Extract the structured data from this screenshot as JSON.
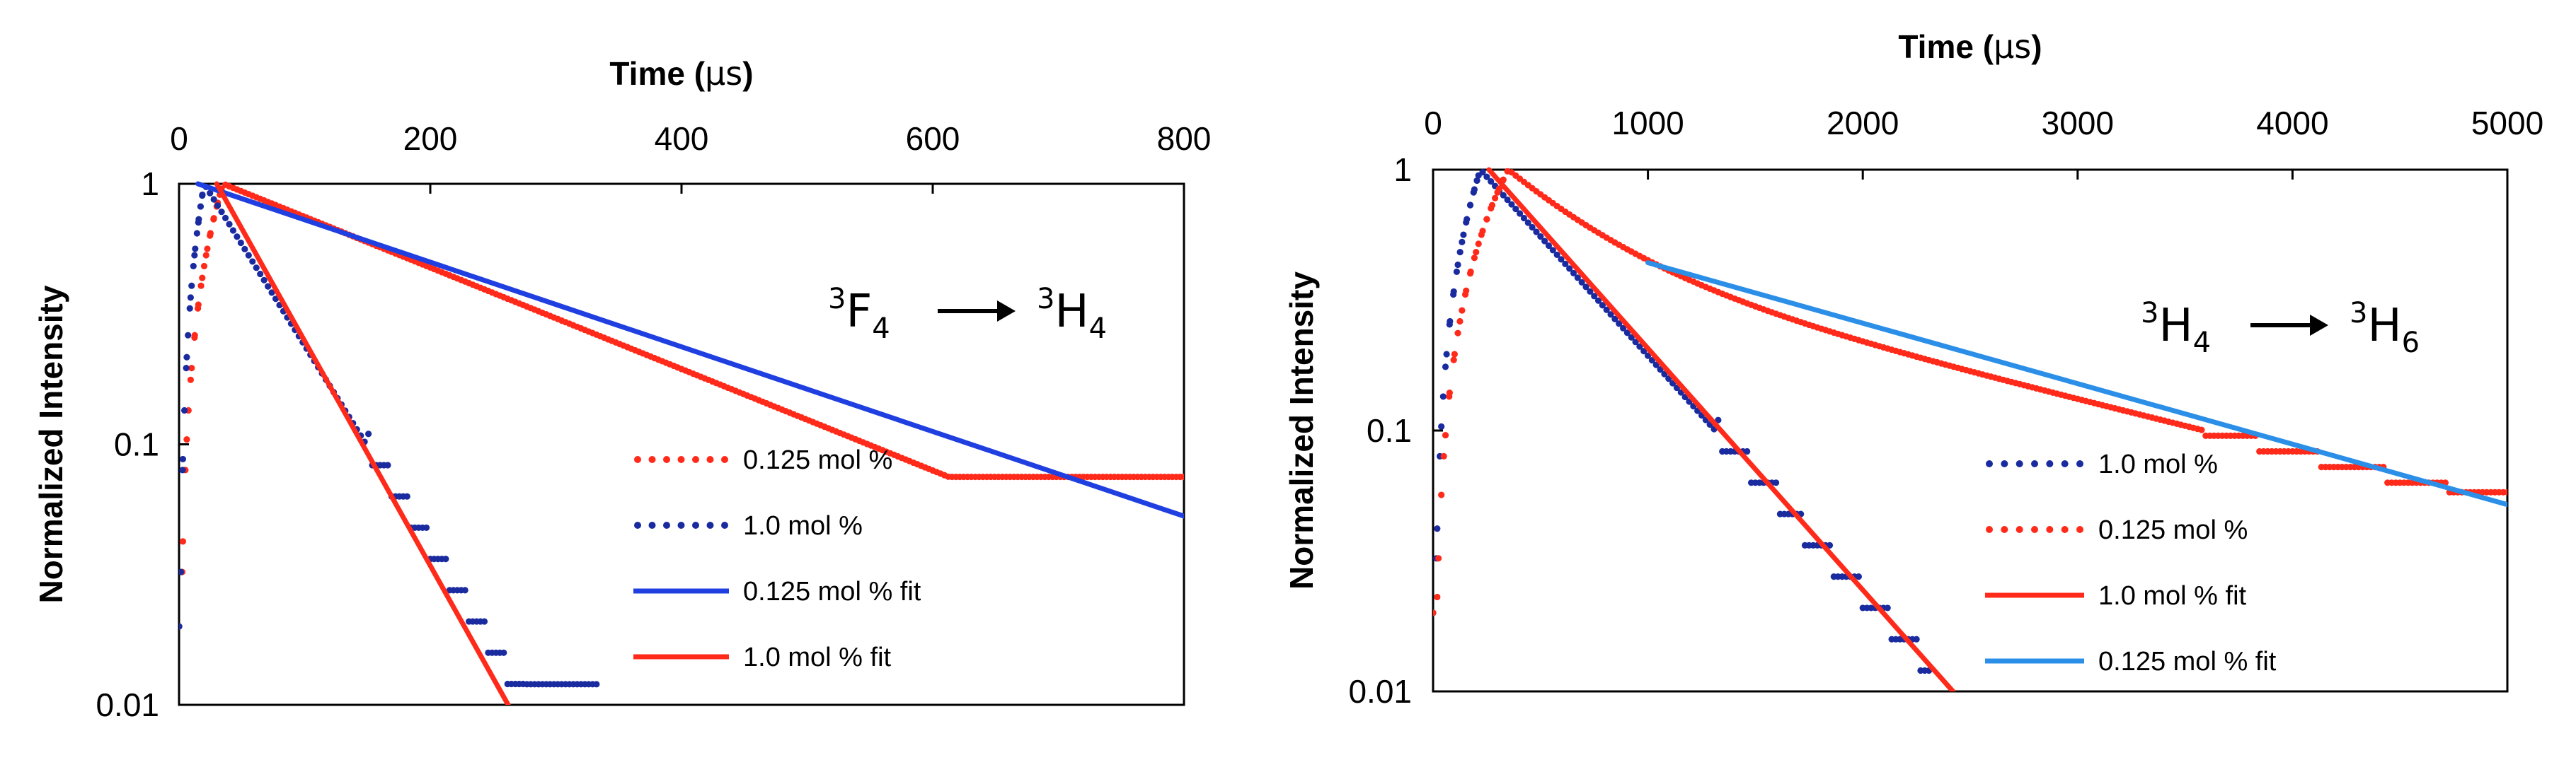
{
  "chart_data": [
    {
      "type": "scatter",
      "transition": {
        "from": "F",
        "from_sup": "3",
        "from_sub": "4",
        "to": "H",
        "to_sup": "3",
        "to_sub": "4"
      },
      "xlabel_prefix": "Time (",
      "xlabel_unit": "μs",
      "xlabel_suffix": ")",
      "ylabel": "Normalized Intensity",
      "xlim": [
        0,
        800
      ],
      "ylim": [
        0.01,
        1
      ],
      "yscale": "log",
      "xticks": [
        0,
        200,
        400,
        600,
        800
      ],
      "xtick_labels": [
        "0",
        "200",
        "400",
        "600",
        "800"
      ],
      "yticks": [
        1,
        0.1,
        0.01
      ],
      "ytick_labels": [
        "1",
        "0.1",
        "0.01"
      ],
      "legend_position": "lower-right",
      "series": [
        {
          "name": "0.125 mol %",
          "style": "dotted",
          "color": "#ff2a1a",
          "rise_end": 35,
          "tau": 223,
          "step": 0.0,
          "floor": 0.075
        },
        {
          "name": "1.0 mol %",
          "style": "dotted",
          "color": "#1a2ba0",
          "rise_end": 20,
          "tau": 56,
          "step": 0.12,
          "floor": 0.012,
          "x_end": 335
        },
        {
          "name": "0.125 mol % fit",
          "style": "line",
          "color": "#1f3fe0",
          "x": [
            15,
            800
          ],
          "y": [
            1.0,
            0.053
          ]
        },
        {
          "name": "1.0 mol % fit",
          "style": "line",
          "color": "#ff2a1a",
          "x": [
            30,
            262
          ],
          "y": [
            1.0,
            0.01
          ]
        }
      ]
    },
    {
      "type": "scatter",
      "transition": {
        "from": "H",
        "from_sup": "3",
        "from_sub": "4",
        "to": "H",
        "to_sup": "3",
        "to_sub": "6"
      },
      "xlabel_prefix": "Time (",
      "xlabel_unit": "μs",
      "xlabel_suffix": ")",
      "ylabel": "Normalized Intensity",
      "xlim": [
        0,
        5000
      ],
      "ylim": [
        0.01,
        1
      ],
      "yscale": "log",
      "xticks": [
        0,
        1000,
        2000,
        3000,
        4000,
        5000
      ],
      "xtick_labels": [
        "0",
        "1000",
        "2000",
        "3000",
        "4000",
        "5000"
      ],
      "yticks": [
        1,
        0.1,
        0.01
      ],
      "ytick_labels": [
        "1",
        "0.1",
        "0.01"
      ],
      "legend_position": "lower-right",
      "series": [
        {
          "name": "1.0 mol %",
          "style": "dotted",
          "color": "#1a2ba0",
          "rise_end": 220,
          "tau": 475,
          "step": 0.12,
          "floor": 0.0115,
          "x_end": 2310
        },
        {
          "name": "0.125 mol %",
          "style": "dotted",
          "color": "#ff2a1a",
          "rise_end": 350,
          "tau": 2150,
          "step": 0.06,
          "floor": 0.058,
          "fast_fraction": 0.55,
          "fast_tau": 420
        },
        {
          "name": "1.0 mol % fit",
          "style": "line",
          "color": "#ff2a1a",
          "x": [
            260,
            2420
          ],
          "y": [
            1.0,
            0.01
          ]
        },
        {
          "name": "0.125 mol % fit",
          "style": "line",
          "color": "#2b8fe8",
          "x": [
            1000,
            5000
          ],
          "y": [
            0.44,
            0.052
          ]
        }
      ]
    }
  ]
}
